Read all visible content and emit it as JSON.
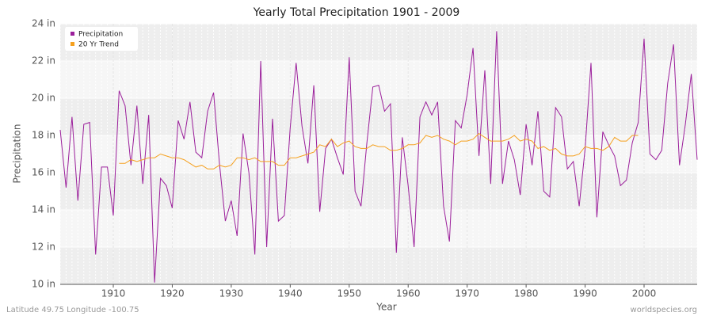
{
  "chart_data": {
    "type": "line",
    "title": "Yearly Total Precipitation 1901 - 2009",
    "x_label": "Year",
    "y_label": "Precipitation",
    "footer_left": "Latitude 49.75 Longitude -100.75",
    "footer_right": "worldspecies.org",
    "legend": "upper left",
    "grid": true,
    "xlim": [
      1901,
      2009
    ],
    "xticks": [
      1910,
      1920,
      1930,
      1940,
      1950,
      1960,
      1970,
      1980,
      1990,
      2000
    ],
    "ylim": [
      10,
      24
    ],
    "yticks": [
      {
        "value": 10,
        "label": "10 in"
      },
      {
        "value": 12,
        "label": "12 in"
      },
      {
        "value": 14,
        "label": "14 in"
      },
      {
        "value": 16,
        "label": "16 in"
      },
      {
        "value": 18,
        "label": "18 in"
      },
      {
        "value": 20,
        "label": "20 in"
      },
      {
        "value": 22,
        "label": "22 in"
      },
      {
        "value": 24,
        "label": "24 in"
      }
    ],
    "x": [
      1901,
      1902,
      1903,
      1904,
      1905,
      1906,
      1907,
      1908,
      1909,
      1910,
      1911,
      1912,
      1913,
      1914,
      1915,
      1916,
      1917,
      1918,
      1919,
      1920,
      1921,
      1922,
      1923,
      1924,
      1925,
      1926,
      1927,
      1928,
      1929,
      1930,
      1931,
      1932,
      1933,
      1934,
      1935,
      1936,
      1937,
      1938,
      1939,
      1940,
      1941,
      1942,
      1943,
      1944,
      1945,
      1946,
      1947,
      1948,
      1949,
      1950,
      1951,
      1952,
      1953,
      1954,
      1955,
      1956,
      1957,
      1958,
      1959,
      1960,
      1961,
      1962,
      1963,
      1964,
      1965,
      1966,
      1967,
      1968,
      1969,
      1970,
      1971,
      1972,
      1973,
      1974,
      1975,
      1976,
      1977,
      1978,
      1979,
      1980,
      1981,
      1982,
      1983,
      1984,
      1985,
      1986,
      1987,
      1988,
      1989,
      1990,
      1991,
      1992,
      1993,
      1994,
      1995,
      1996,
      1997,
      1998,
      1999,
      2000,
      2001,
      2002,
      2003,
      2004,
      2005,
      2006,
      2007,
      2008,
      2009
    ],
    "series": [
      {
        "name": "Precipitation",
        "color": "#9b1f9b",
        "values": [
          18.3,
          15.2,
          19.0,
          14.5,
          18.6,
          18.7,
          11.6,
          16.3,
          16.3,
          13.7,
          20.4,
          19.6,
          16.4,
          19.6,
          15.4,
          19.1,
          10.1,
          15.7,
          15.3,
          14.1,
          18.8,
          17.8,
          19.8,
          17.1,
          16.8,
          19.3,
          20.3,
          16.5,
          13.4,
          14.5,
          12.6,
          18.1,
          16.0,
          11.6,
          22.0,
          12.0,
          18.9,
          13.4,
          13.7,
          18.4,
          21.9,
          18.5,
          16.5,
          20.7,
          13.9,
          17.3,
          17.8,
          16.8,
          15.9,
          22.2,
          15.0,
          14.2,
          17.6,
          20.6,
          20.7,
          19.3,
          19.7,
          11.7,
          17.9,
          15.3,
          12.0,
          19.0,
          19.8,
          19.1,
          19.8,
          14.2,
          12.3,
          18.8,
          18.4,
          20.2,
          22.7,
          16.9,
          21.5,
          15.4,
          23.6,
          15.4,
          17.7,
          16.7,
          14.8,
          18.6,
          16.4,
          19.3,
          15.0,
          14.7,
          19.5,
          19.0,
          16.2,
          16.6,
          14.2,
          17.3,
          21.9,
          13.6,
          18.2,
          17.5,
          16.9,
          15.3,
          15.6,
          17.6,
          18.7,
          23.2,
          17.0,
          16.7,
          17.2,
          20.8,
          22.9,
          16.4,
          18.6,
          21.3,
          16.7
        ]
      },
      {
        "name": "20 Yr Trend",
        "color": "#f5a01e",
        "values": [
          null,
          null,
          null,
          null,
          null,
          null,
          null,
          null,
          null,
          null,
          16.5,
          16.5,
          16.7,
          16.6,
          16.7,
          16.8,
          16.8,
          17.0,
          16.9,
          16.8,
          16.8,
          16.7,
          16.5,
          16.3,
          16.4,
          16.2,
          16.2,
          16.4,
          16.3,
          16.4,
          16.8,
          16.8,
          16.7,
          16.8,
          16.6,
          16.6,
          16.6,
          16.4,
          16.4,
          16.8,
          16.8,
          16.9,
          17.0,
          17.1,
          17.5,
          17.4,
          17.8,
          17.4,
          17.6,
          17.7,
          17.4,
          17.3,
          17.3,
          17.5,
          17.4,
          17.4,
          17.2,
          17.2,
          17.3,
          17.5,
          17.5,
          17.6,
          18.0,
          17.9,
          18.0,
          17.8,
          17.7,
          17.5,
          17.7,
          17.7,
          17.8,
          18.1,
          17.9,
          17.7,
          17.7,
          17.7,
          17.8,
          18.0,
          17.7,
          17.8,
          17.7,
          17.3,
          17.4,
          17.2,
          17.3,
          17.0,
          16.9,
          16.9,
          17.0,
          17.4,
          17.3,
          17.3,
          17.2,
          17.4,
          17.9,
          17.7,
          17.7,
          18.0,
          18.0,
          null,
          null,
          null,
          null,
          null,
          null,
          null,
          null,
          null,
          null
        ]
      }
    ]
  }
}
